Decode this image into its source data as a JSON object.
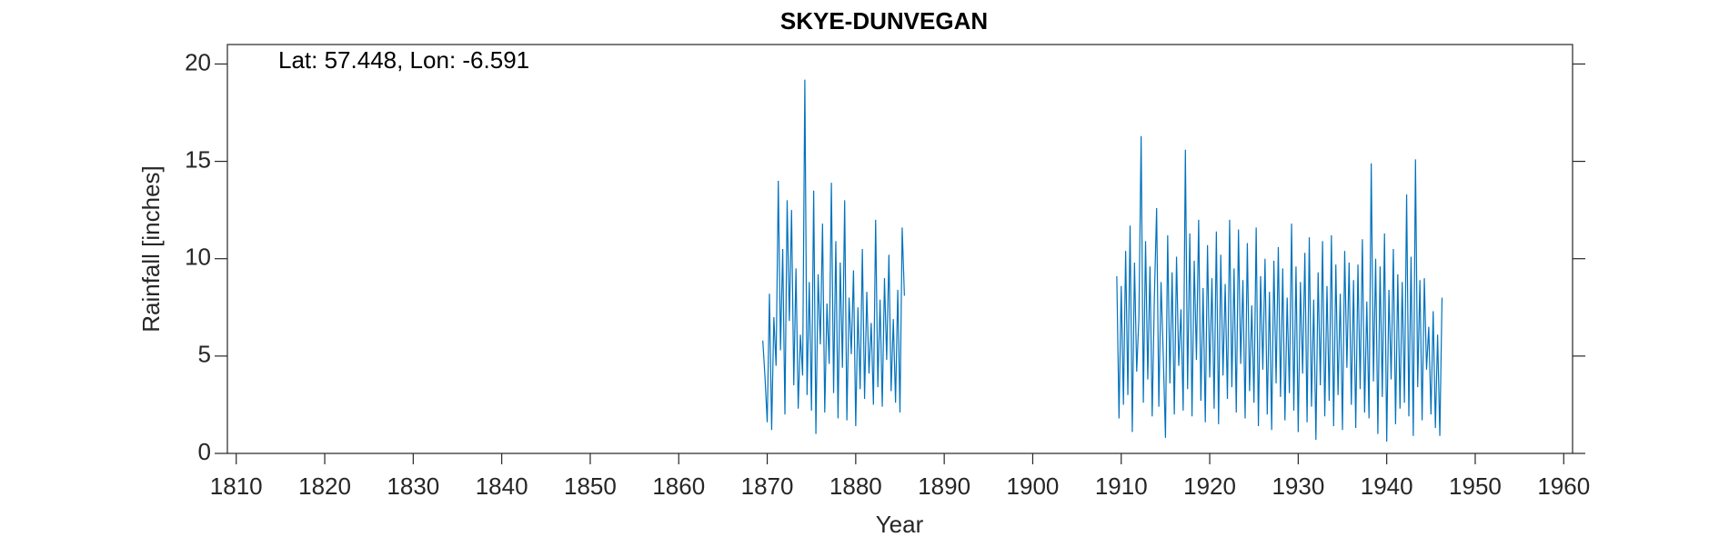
{
  "chart_data": {
    "type": "line",
    "title": "SKYE-DUNVEGAN",
    "annotation": "Lat: 57.448, Lon: -6.591",
    "xlabel": "Year",
    "ylabel": "Rainfall [inches]",
    "xlim": [
      1809,
      1961
    ],
    "xticks": [
      1810,
      1820,
      1830,
      1840,
      1850,
      1860,
      1870,
      1880,
      1890,
      1900,
      1910,
      1920,
      1930,
      1940,
      1950,
      1960
    ],
    "ylim": [
      0,
      21
    ],
    "yticks": [
      0,
      5,
      10,
      15,
      20
    ],
    "color": "#0072bd",
    "x": [
      1869.5,
      1869.75,
      1870,
      1870.25,
      1870.5,
      1870.75,
      1871,
      1871.25,
      1871.5,
      1871.75,
      1872,
      1872.25,
      1872.5,
      1872.75,
      1873,
      1873.25,
      1873.5,
      1873.75,
      1874,
      1874.25,
      1874.5,
      1874.75,
      1875,
      1875.25,
      1875.5,
      1875.75,
      1876,
      1876.25,
      1876.5,
      1876.75,
      1877,
      1877.25,
      1877.5,
      1877.75,
      1878,
      1878.25,
      1878.5,
      1878.75,
      1879,
      1879.25,
      1879.5,
      1879.75,
      1880,
      1880.25,
      1880.5,
      1880.75,
      1881,
      1881.25,
      1881.5,
      1881.75,
      1882,
      1882.25,
      1882.5,
      1882.75,
      1883,
      1883.25,
      1883.5,
      1883.75,
      1884,
      1884.25,
      1884.5,
      1884.75,
      1885,
      1885.25,
      1885.5,
      1897,
      1909.5,
      1909.75,
      1910,
      1910.25,
      1910.5,
      1910.75,
      1911,
      1911.25,
      1911.5,
      1911.75,
      1912,
      1912.25,
      1912.5,
      1912.75,
      1913,
      1913.25,
      1913.5,
      1913.75,
      1914,
      1914.25,
      1914.5,
      1914.75,
      1915,
      1915.25,
      1915.5,
      1915.75,
      1916,
      1916.25,
      1916.5,
      1916.75,
      1917,
      1917.25,
      1917.5,
      1917.75,
      1918,
      1918.25,
      1918.5,
      1918.75,
      1919,
      1919.25,
      1919.5,
      1919.75,
      1920,
      1920.25,
      1920.5,
      1920.75,
      1921,
      1921.25,
      1921.5,
      1921.75,
      1922,
      1922.25,
      1922.5,
      1922.75,
      1923,
      1923.25,
      1923.5,
      1923.75,
      1924,
      1924.25,
      1924.5,
      1924.75,
      1925,
      1925.25,
      1925.5,
      1925.75,
      1926,
      1926.25,
      1926.5,
      1926.75,
      1927,
      1927.25,
      1927.5,
      1927.75,
      1928,
      1928.25,
      1928.5,
      1928.75,
      1929,
      1929.25,
      1929.5,
      1929.75,
      1930,
      1930.25,
      1930.5,
      1930.75,
      1931,
      1931.25,
      1931.5,
      1931.75,
      1932,
      1932.25,
      1932.5,
      1932.75,
      1933,
      1933.25,
      1933.5,
      1933.75,
      1934,
      1934.25,
      1934.5,
      1934.75,
      1935,
      1935.25,
      1935.5,
      1935.75,
      1936,
      1936.25,
      1936.5,
      1936.75,
      1937,
      1937.25,
      1937.5,
      1937.75,
      1938,
      1938.25,
      1938.5,
      1938.75,
      1939,
      1939.25,
      1939.5,
      1939.75,
      1940,
      1940.25,
      1940.5,
      1940.75,
      1941,
      1941.25,
      1941.5,
      1941.75,
      1942,
      1942.25,
      1942.5,
      1942.75,
      1943,
      1943.25,
      1943.5,
      1943.75,
      1944,
      1944.25,
      1944.5,
      1944.75,
      1945,
      1945.25,
      1945.5,
      1945.75,
      1946,
      1946.25
    ],
    "values": [
      5.8,
      3.9,
      1.6,
      8.2,
      1.2,
      7.0,
      4.5,
      14.0,
      5.3,
      10.5,
      2.0,
      13.0,
      6.8,
      12.5,
      3.5,
      9.5,
      2.3,
      6.1,
      4.0,
      19.2,
      3.0,
      8.8,
      2.2,
      13.5,
      1.0,
      9.2,
      5.6,
      11.8,
      2.1,
      7.7,
      4.6,
      13.9,
      3.1,
      10.9,
      1.8,
      9.8,
      4.4,
      13.0,
      1.7,
      8.0,
      5.1,
      9.4,
      1.4,
      7.5,
      3.3,
      10.5,
      2.8,
      8.3,
      4.1,
      6.7,
      2.5,
      12.0,
      3.4,
      7.9,
      2.4,
      9.0,
      4.8,
      10.2,
      3.2,
      6.9,
      2.6,
      8.4,
      2.1,
      11.6,
      8.1,
      null,
      9.1,
      1.8,
      8.6,
      2.5,
      10.4,
      3.0,
      11.7,
      1.1,
      9.8,
      4.2,
      7.0,
      16.3,
      2.6,
      10.9,
      3.8,
      9.6,
      1.9,
      8.1,
      12.6,
      2.4,
      8.8,
      5.0,
      0.8,
      11.2,
      3.6,
      9.3,
      2.0,
      10.1,
      4.5,
      7.4,
      2.2,
      15.6,
      3.3,
      11.3,
      1.9,
      9.9,
      4.8,
      12.0,
      2.7,
      8.5,
      1.6,
      10.7,
      3.9,
      9.0,
      2.3,
      11.4,
      1.5,
      10.2,
      4.0,
      8.7,
      2.8,
      12.0,
      3.4,
      9.5,
      2.1,
      11.5,
      4.6,
      8.9,
      1.8,
      10.8,
      3.2,
      7.6,
      2.6,
      11.6,
      1.4,
      9.1,
      4.3,
      10.0,
      2.0,
      8.3,
      1.2,
      9.9,
      3.6,
      10.6,
      2.9,
      9.5,
      1.7,
      8.0,
      3.1,
      11.8,
      2.2,
      9.6,
      1.1,
      8.8,
      4.1,
      10.3,
      1.6,
      11.1,
      2.4,
      7.9,
      0.7,
      9.3,
      3.5,
      10.9,
      1.9,
      8.6,
      2.7,
      11.2,
      1.4,
      9.7,
      3.0,
      8.2,
      1.2,
      10.4,
      4.4,
      9.8,
      2.5,
      8.9,
      1.3,
      9.7,
      3.3,
      11.0,
      2.1,
      7.8,
      1.8,
      14.9,
      3.7,
      10.0,
      1.0,
      9.6,
      2.9,
      11.3,
      0.6,
      8.4,
      3.8,
      10.5,
      1.5,
      9.2,
      2.3,
      8.8,
      2.6,
      13.3,
      1.9,
      10.1,
      0.9,
      15.1,
      3.4,
      8.9,
      1.7,
      9.0,
      4.3,
      6.5,
      2.0,
      7.3,
      1.3,
      6.1,
      0.9,
      8.0
    ]
  }
}
